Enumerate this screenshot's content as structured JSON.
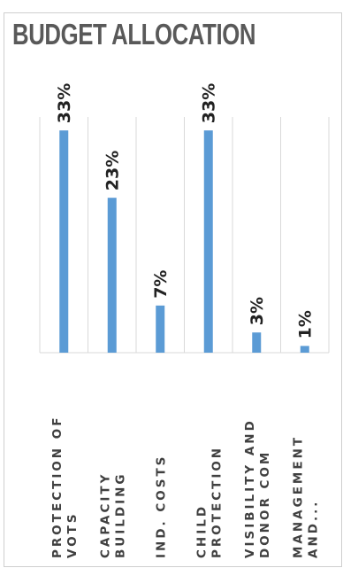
{
  "chart_data": {
    "type": "bar",
    "title": "BUDGET ALLOCATION",
    "xlabel": "",
    "ylabel": "",
    "categories": [
      [
        "PROTECTION OF",
        "VOTS"
      ],
      [
        "CAPACITY",
        "BUILDING"
      ],
      [
        "IND. COSTS"
      ],
      [
        "CHILD",
        "PROTECTION"
      ],
      [
        "VISIBILITY AND",
        "DONOR COM"
      ],
      [
        "MANAGEMENT",
        "AND..."
      ]
    ],
    "values": [
      33,
      23,
      7,
      33,
      3,
      1
    ],
    "value_labels": [
      "33%",
      "23%",
      "7%",
      "33%",
      "3%",
      "1%"
    ],
    "ylim": [
      0,
      35
    ],
    "orientation": "rotated-90",
    "grid": "category-separators",
    "legend": "none",
    "colors": {
      "bar": "#5b9bd5",
      "gridline": "#d9d9d9",
      "title": "#595959"
    }
  }
}
